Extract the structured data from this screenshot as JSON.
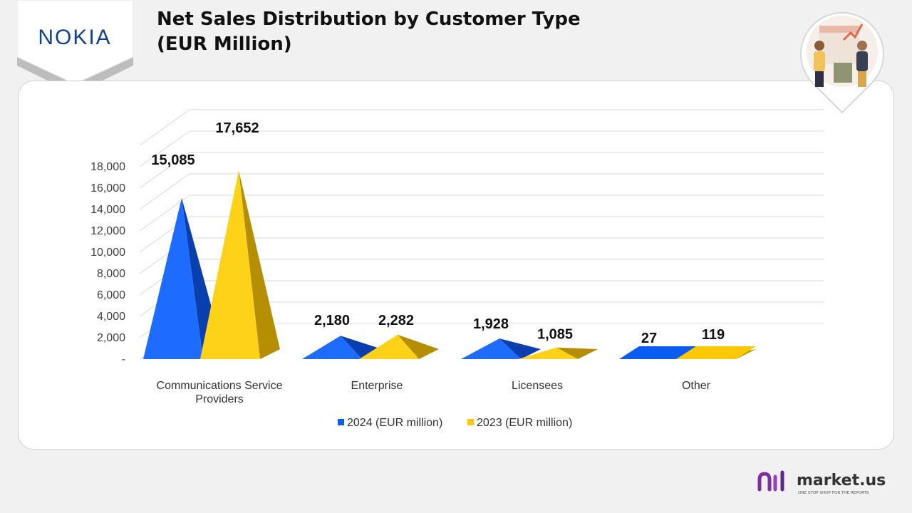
{
  "brand": {
    "logo_text": "NOKIA",
    "footer_name": "market.us",
    "footer_tagline": "ONE STOP SHOP FOR THE REPORTS"
  },
  "colors": {
    "series_2024": "#0a5cf5",
    "series_2023": "#ffc800",
    "nokia_blue": "#124191",
    "footer_purple": "#7b2fa0"
  },
  "icons": [
    "nokia-logo",
    "shopping-illustration-icon",
    "market-us-logo-icon"
  ],
  "chart_data": {
    "type": "bar",
    "subtype": "3d-pyramid",
    "title": [
      "Net Sales Distribution by Customer Type",
      "(EUR Million)"
    ],
    "categories": [
      [
        "Communications Service",
        "Providers"
      ],
      [
        "Enterprise"
      ],
      [
        "Licensees"
      ],
      [
        "Other"
      ]
    ],
    "series": [
      {
        "name": "2024 (EUR million)",
        "values": [
          15085,
          2180,
          1928,
          27
        ],
        "labels": [
          "15,085",
          "2,180",
          "1,928",
          "27"
        ]
      },
      {
        "name": "2023 (EUR million)",
        "values": [
          17652,
          2282,
          1085,
          119
        ],
        "labels": [
          "17,652",
          "2,282",
          "1,085",
          "119"
        ]
      }
    ],
    "yticks": [
      "-",
      "2,000",
      "4,000",
      "6,000",
      "8,000",
      "10,000",
      "12,000",
      "14,000",
      "16,000",
      "18,000"
    ],
    "ylim": [
      0,
      20000
    ],
    "grid": true,
    "legend": "bottom-center"
  }
}
